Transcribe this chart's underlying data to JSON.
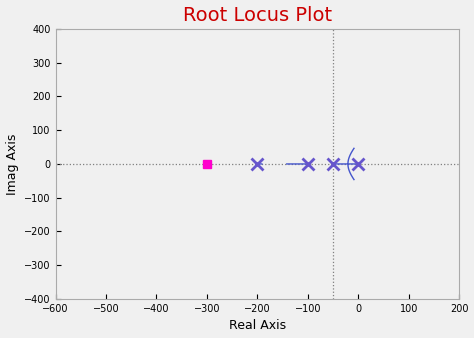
{
  "title": "Root Locus Plot",
  "title_color": "#cc0000",
  "title_fontsize": 14,
  "xlabel": "Real Axis",
  "ylabel": "Imag Axis",
  "xlim": [
    -600,
    200
  ],
  "ylim": [
    -400,
    400
  ],
  "xticks": [
    -600,
    -500,
    -400,
    -300,
    -200,
    -100,
    0,
    100,
    200
  ],
  "yticks": [
    -400,
    -300,
    -200,
    -100,
    0,
    100,
    200,
    300,
    400
  ],
  "background_color": "#f0f0f0",
  "fig_color": "#f0f0f0",
  "poles": [
    0,
    -50,
    -100,
    -200
  ],
  "zeros": [
    -300
  ],
  "pole_color": "#6655cc",
  "zero_color": "#ff00cc",
  "locus_color": "#4455cc",
  "crosshair_color": "gray",
  "vertical_crosshair_x": -50,
  "figsize": [
    4.74,
    3.38
  ],
  "dpi": 100
}
